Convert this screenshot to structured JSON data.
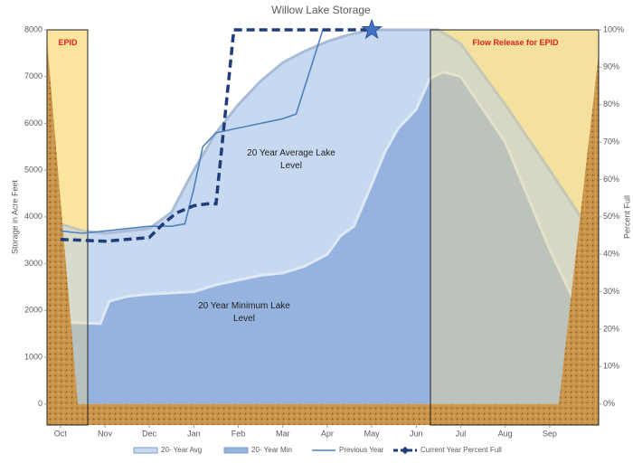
{
  "chart_data": {
    "type": "area-line",
    "title": "Willow Lake Storage",
    "y_label": "Storage in Acre Feet",
    "y2_label": "Percent Full",
    "xlim": [
      -0.3,
      12.1
    ],
    "xticks": [
      {
        "value": 0,
        "label": "Oct"
      },
      {
        "value": 1,
        "label": "Nov"
      },
      {
        "value": 2,
        "label": "Dec"
      },
      {
        "value": 3,
        "label": "Jan"
      },
      {
        "value": 4,
        "label": "Feb"
      },
      {
        "value": 5,
        "label": "Mar"
      },
      {
        "value": 6,
        "label": "Apr"
      },
      {
        "value": 7,
        "label": "May"
      },
      {
        "value": 8,
        "label": "Jun"
      },
      {
        "value": 9,
        "label": "Jul"
      },
      {
        "value": 10,
        "label": "Aug"
      },
      {
        "value": 11,
        "label": "Sep"
      }
    ],
    "ylim": [
      -450,
      8000
    ],
    "yticks": [
      0,
      1000,
      2000,
      3000,
      4000,
      5000,
      6000,
      7000,
      8000
    ],
    "y2lim": [
      -5.625,
      100
    ],
    "y2ticks": [
      {
        "value": 0,
        "label": "0%"
      },
      {
        "value": 10,
        "label": "10%"
      },
      {
        "value": 20,
        "label": "20%"
      },
      {
        "value": 30,
        "label": "30%"
      },
      {
        "value": 40,
        "label": "40%"
      },
      {
        "value": 50,
        "label": "50%"
      },
      {
        "value": 60,
        "label": "60%"
      },
      {
        "value": 70,
        "label": "70%"
      },
      {
        "value": 80,
        "label": "80%"
      },
      {
        "value": 90,
        "label": "90%"
      },
      {
        "value": 100,
        "label": "100%"
      }
    ],
    "annotations": [
      "EPID",
      "Flow Release for EPID",
      "20 Year Average Lake Level",
      "20 Year Minimum Lake Level"
    ],
    "series": [
      {
        "name": "20- Year Avg",
        "kind": "area",
        "color": "#c6d9f1",
        "x": [
          -0.3,
          0,
          0.5,
          1,
          2,
          2.5,
          3,
          3.5,
          4,
          4.5,
          5,
          5.5,
          6,
          6.5,
          7,
          8,
          8.5,
          9,
          10,
          11,
          11.7
        ],
        "values": [
          4150,
          3850,
          3700,
          3650,
          3750,
          4100,
          5000,
          5800,
          6400,
          6900,
          7300,
          7550,
          7750,
          7900,
          8000,
          8000,
          8000,
          7700,
          6400,
          5000,
          4000
        ]
      },
      {
        "name": "20- Year Min",
        "kind": "area",
        "color": "#95b3de",
        "x": [
          0,
          0.9,
          1.1,
          1.5,
          2,
          3,
          3.5,
          4,
          4.5,
          5,
          5.5,
          6,
          6.3,
          6.6,
          7,
          7.3,
          7.6,
          8,
          8.3,
          8.6,
          9,
          10,
          11,
          11.5
        ],
        "values": [
          1750,
          1720,
          2200,
          2300,
          2350,
          2400,
          2550,
          2650,
          2750,
          2800,
          2950,
          3200,
          3600,
          3800,
          4700,
          5400,
          5900,
          6300,
          6950,
          7100,
          7000,
          5600,
          3300,
          2300
        ]
      },
      {
        "name": "Previous Year",
        "kind": "line",
        "color": "#4f81bd",
        "x": [
          0,
          0.5,
          1,
          2,
          2.5,
          2.8,
          3,
          3.2,
          3.5,
          4,
          5,
          5.3,
          5.9
        ],
        "values": [
          3700,
          3650,
          3700,
          3800,
          3800,
          3850,
          4600,
          5500,
          5800,
          5900,
          6100,
          6200,
          8000
        ]
      },
      {
        "name": "Current Year Percent Full",
        "kind": "dashed",
        "axis": "y2",
        "color": "#1f3d7a",
        "end_marker": "star",
        "x": [
          0,
          1,
          2,
          2.3,
          2.6,
          3,
          3.3,
          3.5,
          3.9,
          4.5,
          5,
          7
        ],
        "values": [
          44,
          43.5,
          44.5,
          48,
          51,
          53,
          53.5,
          53.5,
          100,
          100,
          100,
          100
        ]
      }
    ]
  }
}
